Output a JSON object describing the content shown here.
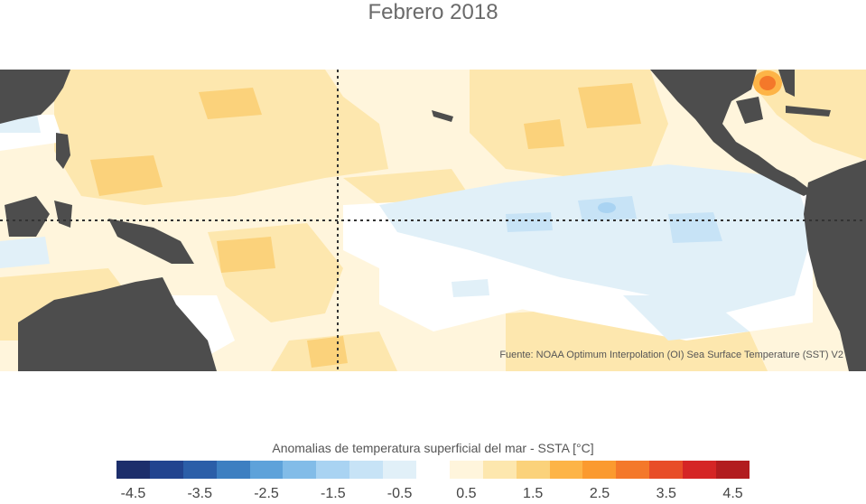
{
  "title": "Febrero 2018",
  "source": "Fuente: NOAA Optimum Interpolation (OI) Sea Surface Temperature (SST) V2",
  "colorbar": {
    "label": "Anomalias de temperatura superficial del mar - SSTA  [°C]",
    "colors": [
      "#1c2e6b",
      "#22448f",
      "#2b5ea8",
      "#3d7fc1",
      "#5ea2da",
      "#82bce8",
      "#a9d3f2",
      "#c7e3f6",
      "#e1f0f8",
      "#ffffff",
      "#fff5dc",
      "#fde7ae",
      "#fbd27b",
      "#fdb447",
      "#fb9a2f",
      "#f4782a",
      "#e84d27",
      "#d52525",
      "#b21c1f"
    ],
    "ticks": [
      "-4.5",
      "-3.5",
      "-2.5",
      "-1.5",
      "-0.5",
      "0.5",
      "1.5",
      "2.5",
      "3.5",
      "4.5"
    ]
  }
}
